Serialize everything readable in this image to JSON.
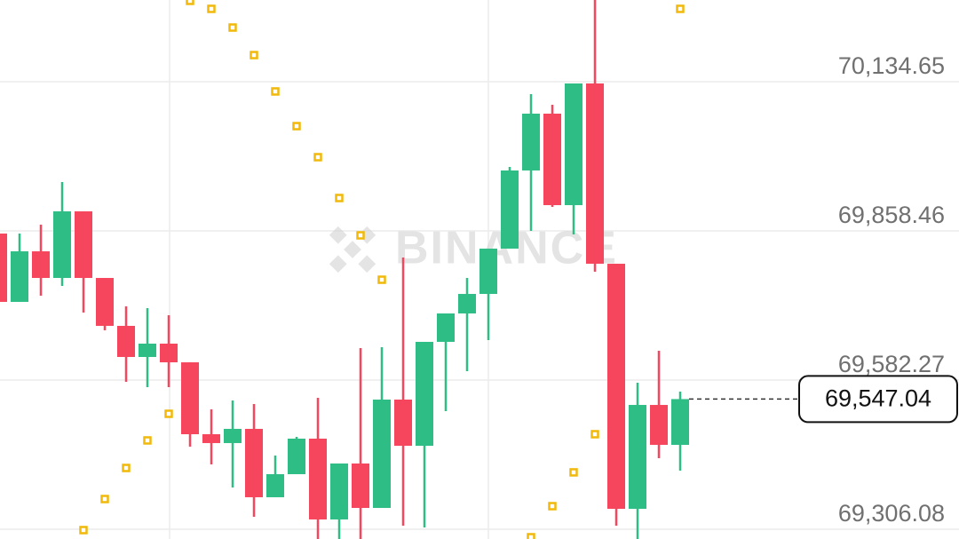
{
  "chart_data": {
    "type": "candlestick",
    "watermark": "BINANCE",
    "up_color": "#2ebd85",
    "down_color": "#f6465d",
    "candles": [
      {
        "open": 69853.5,
        "high": 69899.6,
        "low": 69727.0,
        "close": 69727.0
      },
      {
        "open": 69727.0,
        "high": 69853.5,
        "low": 69727.0,
        "close": 69820.6
      },
      {
        "open": 69820.6,
        "high": 69870.0,
        "low": 69738.5,
        "close": 69771.3
      },
      {
        "open": 69771.3,
        "high": 69948.9,
        "low": 69756.5,
        "close": 69894.6
      },
      {
        "open": 69894.6,
        "high": 69894.6,
        "low": 69707.2,
        "close": 69771.3
      },
      {
        "open": 69771.3,
        "high": 69771.3,
        "low": 69674.4,
        "close": 69682.6
      },
      {
        "open": 69682.6,
        "high": 69718.7,
        "low": 69579.0,
        "close": 69625.0
      },
      {
        "open": 69625.0,
        "high": 69715.5,
        "low": 69569.1,
        "close": 69649.7
      },
      {
        "open": 69649.7,
        "high": 69702.3,
        "low": 69569.1,
        "close": 69615.1
      },
      {
        "open": 69615.1,
        "high": 69615.1,
        "low": 69459.0,
        "close": 69482.0
      },
      {
        "open": 69482.0,
        "high": 69528.1,
        "low": 69426.1,
        "close": 69465.6
      },
      {
        "open": 69465.6,
        "high": 69544.5,
        "low": 69383.3,
        "close": 69491.9
      },
      {
        "open": 69491.9,
        "high": 69537.9,
        "low": 69329.1,
        "close": 69365.3
      },
      {
        "open": 69365.3,
        "high": 69442.5,
        "low": 69365.3,
        "close": 69408.0
      },
      {
        "open": 69408.0,
        "high": 69477.1,
        "low": 69408.0,
        "close": 69473.8
      },
      {
        "open": 69473.8,
        "high": 69549.4,
        "low": 69285.0,
        "close": 69324.2
      },
      {
        "open": 69324.2,
        "high": 69427.8,
        "low": 69285.0,
        "close": 69427.8
      },
      {
        "open": 69427.8,
        "high": 69641.5,
        "low": 69288.0,
        "close": 69345.5
      },
      {
        "open": 69345.5,
        "high": 69643.1,
        "low": 69345.5,
        "close": 69546.1
      },
      {
        "open": 69546.1,
        "high": 69809.1,
        "low": 69312.7,
        "close": 69460.6
      },
      {
        "open": 69460.6,
        "high": 69653.0,
        "low": 69309.4,
        "close": 69653.0
      },
      {
        "open": 69653.0,
        "high": 69705.6,
        "low": 69524.8,
        "close": 69705.6
      },
      {
        "open": 69705.6,
        "high": 69771.3,
        "low": 69598.7,
        "close": 69741.7
      },
      {
        "open": 69741.7,
        "high": 69825.6,
        "low": 69656.3,
        "close": 69825.6
      },
      {
        "open": 69825.6,
        "high": 69976.8,
        "low": 69825.6,
        "close": 69970.3
      },
      {
        "open": 69970.3,
        "high": 70111.6,
        "low": 69858.5,
        "close": 70075.5
      },
      {
        "open": 70075.5,
        "high": 70091.9,
        "low": 69902.9,
        "close": 69906.1
      },
      {
        "open": 69906.1,
        "high": 70131.4,
        "low": 69851.9,
        "close": 70131.4
      },
      {
        "open": 70131.4,
        "high": 70290.0,
        "low": 69782.8,
        "close": 69797.6
      },
      {
        "open": 69797.6,
        "high": 69797.6,
        "low": 69312.7,
        "close": 69343.9
      },
      {
        "open": 69343.9,
        "high": 69577.3,
        "low": 69285.0,
        "close": 69536.2
      },
      {
        "open": 69536.2,
        "high": 69636.5,
        "low": 69437.6,
        "close": 69462.3
      },
      {
        "open": 69462.3,
        "high": 69560.9,
        "low": 69414.6,
        "close": 69547.04
      }
    ],
    "sar": {
      "color": "#f0b90b",
      "values": [
        null,
        null,
        null,
        null,
        69304.5,
        69362.0,
        69419.5,
        69470.5,
        69519.8,
        70284.3,
        70269.5,
        70234.9,
        70183.9,
        70116.6,
        70052.4,
        69994.9,
        69919.3,
        69850.2,
        69768.0,
        null,
        null,
        null,
        null,
        null,
        null,
        69291.3,
        69348.8,
        69411.4,
        69482.0,
        null,
        null,
        null,
        70269.5
      ]
    },
    "ylim": [
      69288.0,
      70285.9
    ],
    "yticks": [
      {
        "value": 70134.65,
        "label": "70,134.65"
      },
      {
        "value": 69858.46,
        "label": "69,858.46"
      },
      {
        "value": 69582.27,
        "label": "69,582.27"
      },
      {
        "value": 69306.08,
        "label": "69,306.08"
      }
    ],
    "last_price": {
      "value": 69547.04,
      "label": "69,547.04"
    }
  }
}
